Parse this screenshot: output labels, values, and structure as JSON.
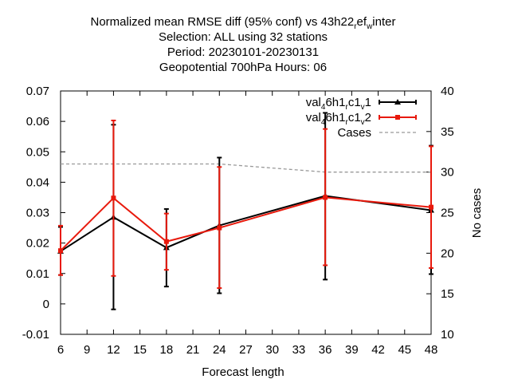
{
  "chart_data": {
    "type": "line",
    "title_lines": [
      {
        "parts": [
          {
            "text": "Normalized mean RMSE diff (95% conf) vs 43h22"
          },
          {
            "text": "r",
            "sub": true
          },
          {
            "text": "ef"
          },
          {
            "text": "w",
            "sub": true
          },
          {
            "text": "inter"
          }
        ]
      },
      {
        "parts": [
          {
            "text": "Selection: ALL using    32 stations"
          }
        ]
      },
      {
        "parts": [
          {
            "text": "Period: 20230101-20230131"
          }
        ]
      },
      {
        "parts": [
          {
            "text": "Geopotential 700hPa   Hours:  06"
          }
        ]
      }
    ],
    "xlabel": "Forecast length",
    "ylabel_right": "No cases",
    "x_ticks": [
      "6",
      "9",
      "12",
      "15",
      "18",
      "21",
      "24",
      "27",
      "30",
      "33",
      "36",
      "39",
      "42",
      "45",
      "48"
    ],
    "y_ticks": [
      "0.07",
      "0.06",
      "0.05",
      "0.04",
      "0.03",
      "0.02",
      "0.01",
      "0",
      "-0.01"
    ],
    "y2_ticks": [
      "40",
      "35",
      "30",
      "25",
      "20",
      "15",
      "10"
    ],
    "xlim": [
      6,
      48
    ],
    "ylim": [
      -0.01,
      0.07
    ],
    "y2lim": [
      10,
      40
    ],
    "series": [
      {
        "legend_parts": [
          {
            "text": "val"
          },
          {
            "text": "4",
            "sub": true
          },
          {
            "text": "6h1"
          },
          {
            "text": "r",
            "sub": true
          },
          {
            "text": "c1"
          },
          {
            "text": "v",
            "sub": true
          },
          {
            "text": "1"
          }
        ],
        "color": "#000000",
        "marker": "triangle",
        "x": [
          6,
          12,
          18,
          24,
          36,
          48
        ],
        "y": [
          0.0173,
          0.0285,
          0.0185,
          0.0258,
          0.0355,
          0.0308
        ],
        "err_low": [
          0.0095,
          -0.0018,
          0.0057,
          0.0035,
          0.008,
          0.0098
        ],
        "err_high": [
          0.0253,
          0.0589,
          0.0312,
          0.0481,
          0.0628,
          0.052
        ]
      },
      {
        "legend_parts": [
          {
            "text": "val"
          },
          {
            "text": "4",
            "sub": true
          },
          {
            "text": "6h1"
          },
          {
            "text": "r",
            "sub": true
          },
          {
            "text": "c1"
          },
          {
            "text": "v",
            "sub": true
          },
          {
            "text": "2"
          }
        ],
        "color": "#e8190c",
        "marker": "square",
        "x": [
          6,
          12,
          18,
          24,
          36,
          48
        ],
        "y": [
          0.0175,
          0.0348,
          0.0205,
          0.025,
          0.035,
          0.0318
        ],
        "err_low": [
          0.0095,
          0.0092,
          0.0112,
          0.0052,
          0.0127,
          0.0118
        ],
        "err_high": [
          0.0257,
          0.0603,
          0.0297,
          0.045,
          0.0575,
          0.0518
        ]
      }
    ],
    "cases": {
      "legend": "Cases",
      "color": "#999999",
      "x": [
        6,
        12,
        18,
        24,
        36,
        48
      ],
      "y": [
        31,
        31,
        31,
        31,
        30,
        30
      ]
    },
    "grid": false,
    "legend_position": "top-right"
  }
}
